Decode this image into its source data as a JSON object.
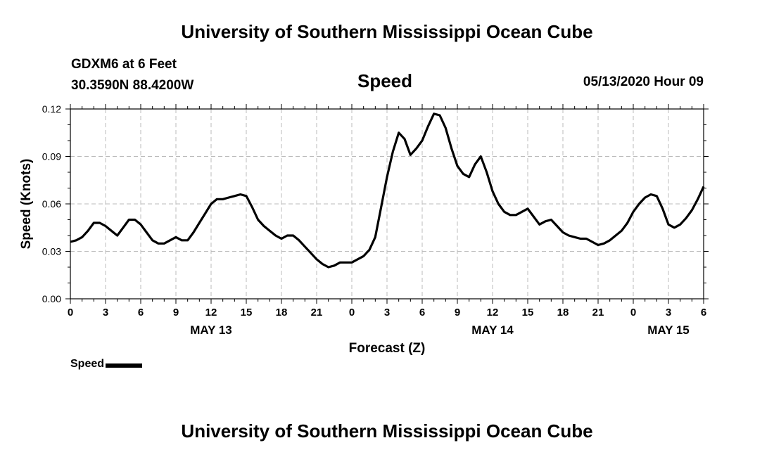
{
  "header": {
    "title": "University of Southern Mississippi Ocean Cube"
  },
  "station": {
    "name": "GDXM6 at 6 Feet",
    "coords": "30.3590N 88.4200W"
  },
  "timestamp": "05/13/2020 Hour 09",
  "footer": {
    "title": "University of Southern Mississippi Ocean Cube"
  },
  "legend": {
    "label": "Speed"
  },
  "chart_data": {
    "type": "line",
    "title": "Speed",
    "xlabel": "Forecast (Z)",
    "ylabel": "Speed (Knots)",
    "ylim": [
      0,
      0.12
    ],
    "xlim": [
      0,
      54
    ],
    "yticks": [
      0.0,
      0.03,
      0.06,
      0.09,
      0.12
    ],
    "ytick_labels": [
      "0.00",
      "0.03",
      "0.06",
      "0.09",
      "0.12"
    ],
    "xticks": [
      0,
      3,
      6,
      9,
      12,
      15,
      18,
      21,
      24,
      27,
      30,
      33,
      36,
      39,
      42,
      45,
      48,
      51,
      54
    ],
    "xtick_labels": [
      "0",
      "3",
      "6",
      "9",
      "12",
      "15",
      "18",
      "21",
      "0",
      "3",
      "6",
      "9",
      "12",
      "15",
      "18",
      "21",
      "0",
      "3",
      "6"
    ],
    "date_labels": [
      {
        "x": 12,
        "label": "MAY 13"
      },
      {
        "x": 36,
        "label": "MAY 14"
      },
      {
        "x": 51,
        "label": "MAY 15"
      }
    ],
    "grid": true,
    "legend_position": "bottom-left",
    "series": [
      {
        "name": "Speed",
        "color": "#000000",
        "x": [
          0,
          0.5,
          1,
          1.5,
          2,
          2.5,
          3,
          3.5,
          4,
          4.5,
          5,
          5.5,
          6,
          6.5,
          7,
          7.5,
          8,
          8.5,
          9,
          9.5,
          10,
          10.5,
          11,
          11.5,
          12,
          12.5,
          13,
          13.5,
          14,
          14.5,
          15,
          15.5,
          16,
          16.5,
          17,
          17.5,
          18,
          18.5,
          19,
          19.5,
          20,
          20.5,
          21,
          21.5,
          22,
          22.5,
          23,
          23.5,
          24,
          24.5,
          25,
          25.5,
          26,
          26.5,
          27,
          27.5,
          28,
          28.5,
          29,
          29.5,
          30,
          30.5,
          31,
          31.5,
          32,
          32.5,
          33,
          33.5,
          34,
          34.5,
          35,
          35.5,
          36,
          36.5,
          37,
          37.5,
          38,
          38.5,
          39,
          39.5,
          40,
          40.5,
          41,
          41.5,
          42,
          42.5,
          43,
          43.5,
          44,
          44.5,
          45,
          45.5,
          46,
          46.5,
          47,
          47.5,
          48,
          48.5,
          49,
          49.5,
          50,
          50.5,
          51,
          51.5,
          52,
          52.5,
          53,
          53.5,
          54
        ],
        "y": [
          0.036,
          0.037,
          0.039,
          0.043,
          0.048,
          0.048,
          0.046,
          0.043,
          0.04,
          0.045,
          0.05,
          0.05,
          0.047,
          0.042,
          0.037,
          0.035,
          0.035,
          0.037,
          0.039,
          0.037,
          0.037,
          0.042,
          0.048,
          0.054,
          0.06,
          0.063,
          0.063,
          0.064,
          0.065,
          0.066,
          0.065,
          0.058,
          0.05,
          0.046,
          0.043,
          0.04,
          0.038,
          0.04,
          0.04,
          0.037,
          0.033,
          0.029,
          0.025,
          0.022,
          0.02,
          0.021,
          0.023,
          0.023,
          0.023,
          0.025,
          0.027,
          0.031,
          0.039,
          0.058,
          0.077,
          0.093,
          0.105,
          0.101,
          0.091,
          0.095,
          0.1,
          0.109,
          0.117,
          0.116,
          0.108,
          0.095,
          0.084,
          0.079,
          0.077,
          0.085,
          0.09,
          0.08,
          0.068,
          0.06,
          0.055,
          0.053,
          0.053,
          0.055,
          0.057,
          0.052,
          0.047,
          0.049,
          0.05,
          0.046,
          0.042,
          0.04,
          0.039,
          0.038,
          0.038,
          0.036,
          0.034,
          0.035,
          0.037,
          0.04,
          0.043,
          0.048,
          0.055,
          0.06,
          0.064,
          0.066,
          0.065,
          0.057,
          0.047,
          0.045,
          0.047,
          0.051,
          0.056,
          0.063,
          0.071
        ]
      }
    ]
  }
}
